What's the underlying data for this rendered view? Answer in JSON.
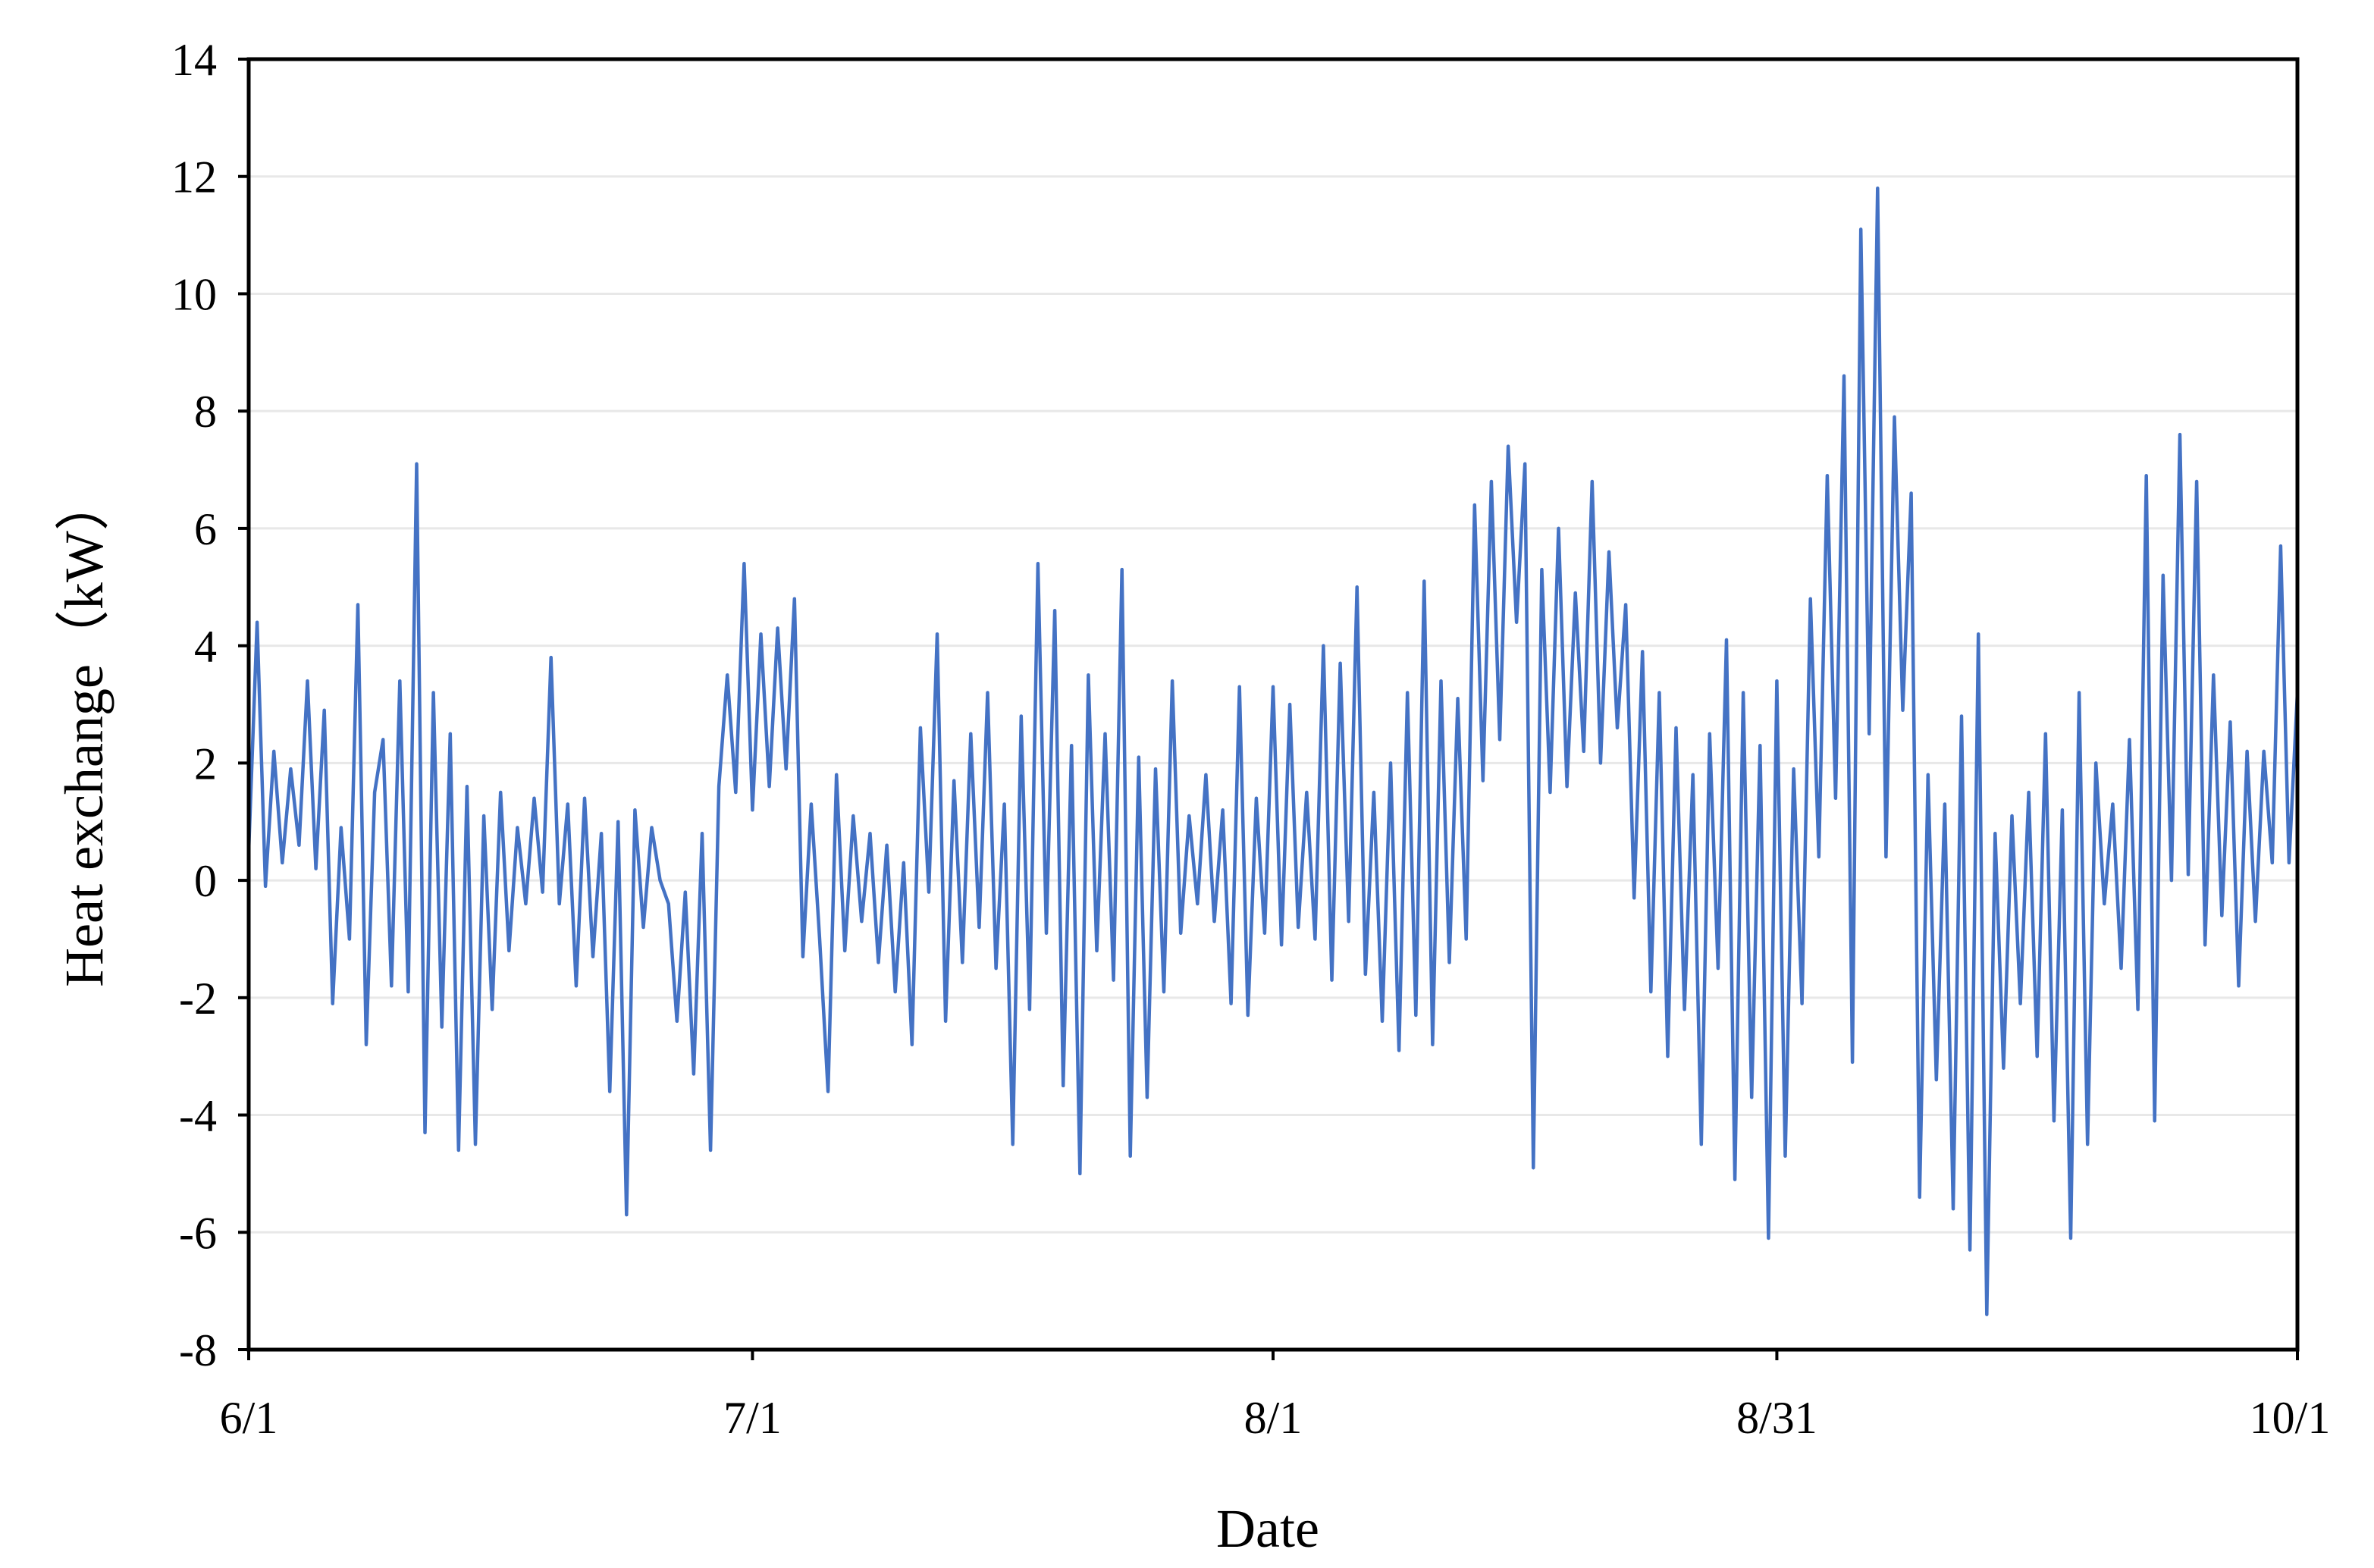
{
  "chart_data": {
    "type": "line",
    "title": "",
    "xlabel": "Date",
    "ylabel": "Heat exchange（kW）",
    "x_tick_labels": [
      "6/1",
      "7/1",
      "8/1",
      "8/31",
      "10/1"
    ],
    "x_tick_dates": [
      "06-01",
      "07-01",
      "08-01",
      "08-31",
      "10-01"
    ],
    "xlim": [
      "06-01",
      "10-01"
    ],
    "ylim": [
      -8,
      14
    ],
    "y_ticks": [
      -8,
      -6,
      -4,
      -2,
      0,
      2,
      4,
      6,
      8,
      10,
      12,
      14
    ],
    "y_tick_labels": [
      "-8",
      "-6",
      "-4",
      "-2",
      "0",
      "2",
      "4",
      "6",
      "8",
      "10",
      "12",
      "14"
    ],
    "grid": "horizontal",
    "legend": "none",
    "series": [
      {
        "color": "#4472C4",
        "points": [
          [
            "06-01",
            0.5
          ],
          [
            "06-01",
            4.4
          ],
          [
            "06-02",
            -0.1
          ],
          [
            "06-02",
            2.2
          ],
          [
            "06-03",
            0.3
          ],
          [
            "06-03",
            1.9
          ],
          [
            "06-04",
            0.6
          ],
          [
            "06-04",
            3.4
          ],
          [
            "06-05",
            0.2
          ],
          [
            "06-05",
            2.9
          ],
          [
            "06-06",
            -2.1
          ],
          [
            "06-06",
            0.9
          ],
          [
            "06-07",
            -1.0
          ],
          [
            "06-07",
            4.7
          ],
          [
            "06-08",
            -2.8
          ],
          [
            "06-08",
            1.5
          ],
          [
            "06-09",
            2.4
          ],
          [
            "06-09",
            -1.8
          ],
          [
            "06-10",
            3.4
          ],
          [
            "06-10",
            -1.9
          ],
          [
            "06-11",
            7.1
          ],
          [
            "06-11",
            -4.3
          ],
          [
            "06-12",
            3.2
          ],
          [
            "06-12",
            -2.5
          ],
          [
            "06-13",
            2.5
          ],
          [
            "06-13",
            -4.6
          ],
          [
            "06-14",
            1.6
          ],
          [
            "06-14",
            -4.5
          ],
          [
            "06-15",
            1.1
          ],
          [
            "06-15",
            -2.2
          ],
          [
            "06-16",
            1.5
          ],
          [
            "06-16",
            -1.2
          ],
          [
            "06-17",
            0.9
          ],
          [
            "06-17",
            -0.4
          ],
          [
            "06-18",
            1.4
          ],
          [
            "06-18",
            -0.2
          ],
          [
            "06-19",
            3.8
          ],
          [
            "06-19",
            -0.4
          ],
          [
            "06-20",
            1.3
          ],
          [
            "06-20",
            -1.8
          ],
          [
            "06-21",
            1.4
          ],
          [
            "06-21",
            -1.3
          ],
          [
            "06-22",
            0.8
          ],
          [
            "06-22",
            -3.6
          ],
          [
            "06-23",
            1.0
          ],
          [
            "06-23",
            -5.7
          ],
          [
            "06-24",
            1.2
          ],
          [
            "06-24",
            -0.8
          ],
          [
            "06-25",
            0.9
          ],
          [
            "06-25",
            0.0
          ],
          [
            "06-26",
            -0.4
          ],
          [
            "06-26",
            -2.4
          ],
          [
            "06-27",
            -0.2
          ],
          [
            "06-27",
            -3.3
          ],
          [
            "06-28",
            0.8
          ],
          [
            "06-28",
            -4.6
          ],
          [
            "06-29",
            1.6
          ],
          [
            "06-29",
            3.5
          ],
          [
            "06-30",
            1.5
          ],
          [
            "06-30",
            5.4
          ],
          [
            "07-01",
            1.2
          ],
          [
            "07-01",
            4.2
          ],
          [
            "07-02",
            1.6
          ],
          [
            "07-02",
            4.3
          ],
          [
            "07-03",
            1.9
          ],
          [
            "07-03",
            4.8
          ],
          [
            "07-04",
            -1.3
          ],
          [
            "07-04",
            1.3
          ],
          [
            "07-05",
            -1.0
          ],
          [
            "07-05",
            -3.6
          ],
          [
            "07-06",
            1.8
          ],
          [
            "07-06",
            -1.2
          ],
          [
            "07-07",
            1.1
          ],
          [
            "07-07",
            -0.7
          ],
          [
            "07-08",
            0.8
          ],
          [
            "07-08",
            -1.4
          ],
          [
            "07-09",
            0.6
          ],
          [
            "07-09",
            -1.9
          ],
          [
            "07-10",
            0.3
          ],
          [
            "07-10",
            -2.8
          ],
          [
            "07-11",
            2.6
          ],
          [
            "07-11",
            -0.2
          ],
          [
            "07-12",
            4.2
          ],
          [
            "07-12",
            -2.4
          ],
          [
            "07-13",
            1.7
          ],
          [
            "07-13",
            -1.4
          ],
          [
            "07-14",
            2.5
          ],
          [
            "07-14",
            -0.8
          ],
          [
            "07-15",
            3.2
          ],
          [
            "07-15",
            -1.5
          ],
          [
            "07-16",
            1.3
          ],
          [
            "07-16",
            -4.5
          ],
          [
            "07-17",
            2.8
          ],
          [
            "07-17",
            -2.2
          ],
          [
            "07-18",
            5.4
          ],
          [
            "07-18",
            -0.9
          ],
          [
            "07-19",
            4.6
          ],
          [
            "07-19",
            -3.5
          ],
          [
            "07-20",
            2.3
          ],
          [
            "07-20",
            -5.0
          ],
          [
            "07-21",
            3.5
          ],
          [
            "07-21",
            -1.2
          ],
          [
            "07-22",
            2.5
          ],
          [
            "07-22",
            -1.7
          ],
          [
            "07-23",
            5.3
          ],
          [
            "07-23",
            -4.7
          ],
          [
            "07-24",
            2.1
          ],
          [
            "07-24",
            -3.7
          ],
          [
            "07-25",
            1.9
          ],
          [
            "07-25",
            -1.9
          ],
          [
            "07-26",
            3.4
          ],
          [
            "07-26",
            -0.9
          ],
          [
            "07-27",
            1.1
          ],
          [
            "07-27",
            -0.4
          ],
          [
            "07-28",
            1.8
          ],
          [
            "07-28",
            -0.7
          ],
          [
            "07-29",
            1.2
          ],
          [
            "07-29",
            -2.1
          ],
          [
            "07-30",
            3.3
          ],
          [
            "07-30",
            -2.3
          ],
          [
            "07-31",
            1.4
          ],
          [
            "07-31",
            -0.9
          ],
          [
            "08-01",
            3.3
          ],
          [
            "08-01",
            -1.1
          ],
          [
            "08-02",
            3.0
          ],
          [
            "08-02",
            -0.8
          ],
          [
            "08-03",
            1.5
          ],
          [
            "08-03",
            -1.0
          ],
          [
            "08-04",
            4.0
          ],
          [
            "08-04",
            -1.7
          ],
          [
            "08-05",
            3.7
          ],
          [
            "08-05",
            -0.7
          ],
          [
            "08-06",
            5.0
          ],
          [
            "08-06",
            -1.6
          ],
          [
            "08-07",
            1.5
          ],
          [
            "08-07",
            -2.4
          ],
          [
            "08-08",
            2.0
          ],
          [
            "08-08",
            -2.9
          ],
          [
            "08-09",
            3.2
          ],
          [
            "08-09",
            -2.3
          ],
          [
            "08-10",
            5.1
          ],
          [
            "08-10",
            -2.8
          ],
          [
            "08-11",
            3.4
          ],
          [
            "08-11",
            -1.4
          ],
          [
            "08-12",
            3.1
          ],
          [
            "08-12",
            -1.0
          ],
          [
            "08-13",
            6.4
          ],
          [
            "08-13",
            1.7
          ],
          [
            "08-14",
            6.8
          ],
          [
            "08-14",
            2.4
          ],
          [
            "08-15",
            7.4
          ],
          [
            "08-15",
            4.4
          ],
          [
            "08-16",
            7.1
          ],
          [
            "08-16",
            -4.9
          ],
          [
            "08-17",
            5.3
          ],
          [
            "08-17",
            1.5
          ],
          [
            "08-18",
            6.0
          ],
          [
            "08-18",
            1.6
          ],
          [
            "08-19",
            4.9
          ],
          [
            "08-19",
            2.2
          ],
          [
            "08-20",
            6.8
          ],
          [
            "08-20",
            2.0
          ],
          [
            "08-21",
            5.6
          ],
          [
            "08-21",
            2.6
          ],
          [
            "08-22",
            4.7
          ],
          [
            "08-22",
            -0.3
          ],
          [
            "08-23",
            3.9
          ],
          [
            "08-23",
            -1.9
          ],
          [
            "08-24",
            3.2
          ],
          [
            "08-24",
            -3.0
          ],
          [
            "08-25",
            2.6
          ],
          [
            "08-25",
            -2.2
          ],
          [
            "08-26",
            1.8
          ],
          [
            "08-26",
            -4.5
          ],
          [
            "08-27",
            2.5
          ],
          [
            "08-27",
            -1.5
          ],
          [
            "08-28",
            4.1
          ],
          [
            "08-28",
            -5.1
          ],
          [
            "08-29",
            3.2
          ],
          [
            "08-29",
            -3.7
          ],
          [
            "08-30",
            2.3
          ],
          [
            "08-30",
            -6.1
          ],
          [
            "08-31",
            3.4
          ],
          [
            "08-31",
            -4.7
          ],
          [
            "09-01",
            1.9
          ],
          [
            "09-01",
            -2.1
          ],
          [
            "09-02",
            4.8
          ],
          [
            "09-02",
            0.4
          ],
          [
            "09-03",
            6.9
          ],
          [
            "09-03",
            1.4
          ],
          [
            "09-04",
            8.6
          ],
          [
            "09-04",
            -3.1
          ],
          [
            "09-05",
            11.1
          ],
          [
            "09-05",
            2.5
          ],
          [
            "09-06",
            11.8
          ],
          [
            "09-06",
            0.4
          ],
          [
            "09-07",
            7.9
          ],
          [
            "09-07",
            2.9
          ],
          [
            "09-08",
            6.6
          ],
          [
            "09-08",
            -5.4
          ],
          [
            "09-09",
            1.8
          ],
          [
            "09-09",
            -3.4
          ],
          [
            "09-10",
            1.3
          ],
          [
            "09-10",
            -5.6
          ],
          [
            "09-11",
            2.8
          ],
          [
            "09-11",
            -6.3
          ],
          [
            "09-12",
            4.2
          ],
          [
            "09-12",
            -7.4
          ],
          [
            "09-13",
            0.8
          ],
          [
            "09-13",
            -3.2
          ],
          [
            "09-14",
            1.1
          ],
          [
            "09-14",
            -2.1
          ],
          [
            "09-15",
            1.5
          ],
          [
            "09-15",
            -3.0
          ],
          [
            "09-16",
            2.5
          ],
          [
            "09-16",
            -4.1
          ],
          [
            "09-17",
            1.2
          ],
          [
            "09-17",
            -6.1
          ],
          [
            "09-18",
            3.2
          ],
          [
            "09-18",
            -4.5
          ],
          [
            "09-19",
            2.0
          ],
          [
            "09-19",
            -0.4
          ],
          [
            "09-20",
            1.3
          ],
          [
            "09-20",
            -1.5
          ],
          [
            "09-21",
            2.4
          ],
          [
            "09-21",
            -2.2
          ],
          [
            "09-22",
            6.9
          ],
          [
            "09-22",
            -4.1
          ],
          [
            "09-23",
            5.2
          ],
          [
            "09-23",
            0.0
          ],
          [
            "09-24",
            7.6
          ],
          [
            "09-24",
            0.1
          ],
          [
            "09-25",
            6.8
          ],
          [
            "09-25",
            -1.1
          ],
          [
            "09-26",
            3.5
          ],
          [
            "09-26",
            -0.6
          ],
          [
            "09-27",
            2.7
          ],
          [
            "09-27",
            -1.8
          ],
          [
            "09-28",
            2.2
          ],
          [
            "09-28",
            -0.7
          ],
          [
            "09-29",
            2.2
          ],
          [
            "09-29",
            0.3
          ],
          [
            "09-30",
            5.7
          ],
          [
            "09-30",
            0.3
          ],
          [
            "10-01",
            3.2
          ],
          [
            "10-01",
            2.0
          ]
        ]
      }
    ]
  }
}
